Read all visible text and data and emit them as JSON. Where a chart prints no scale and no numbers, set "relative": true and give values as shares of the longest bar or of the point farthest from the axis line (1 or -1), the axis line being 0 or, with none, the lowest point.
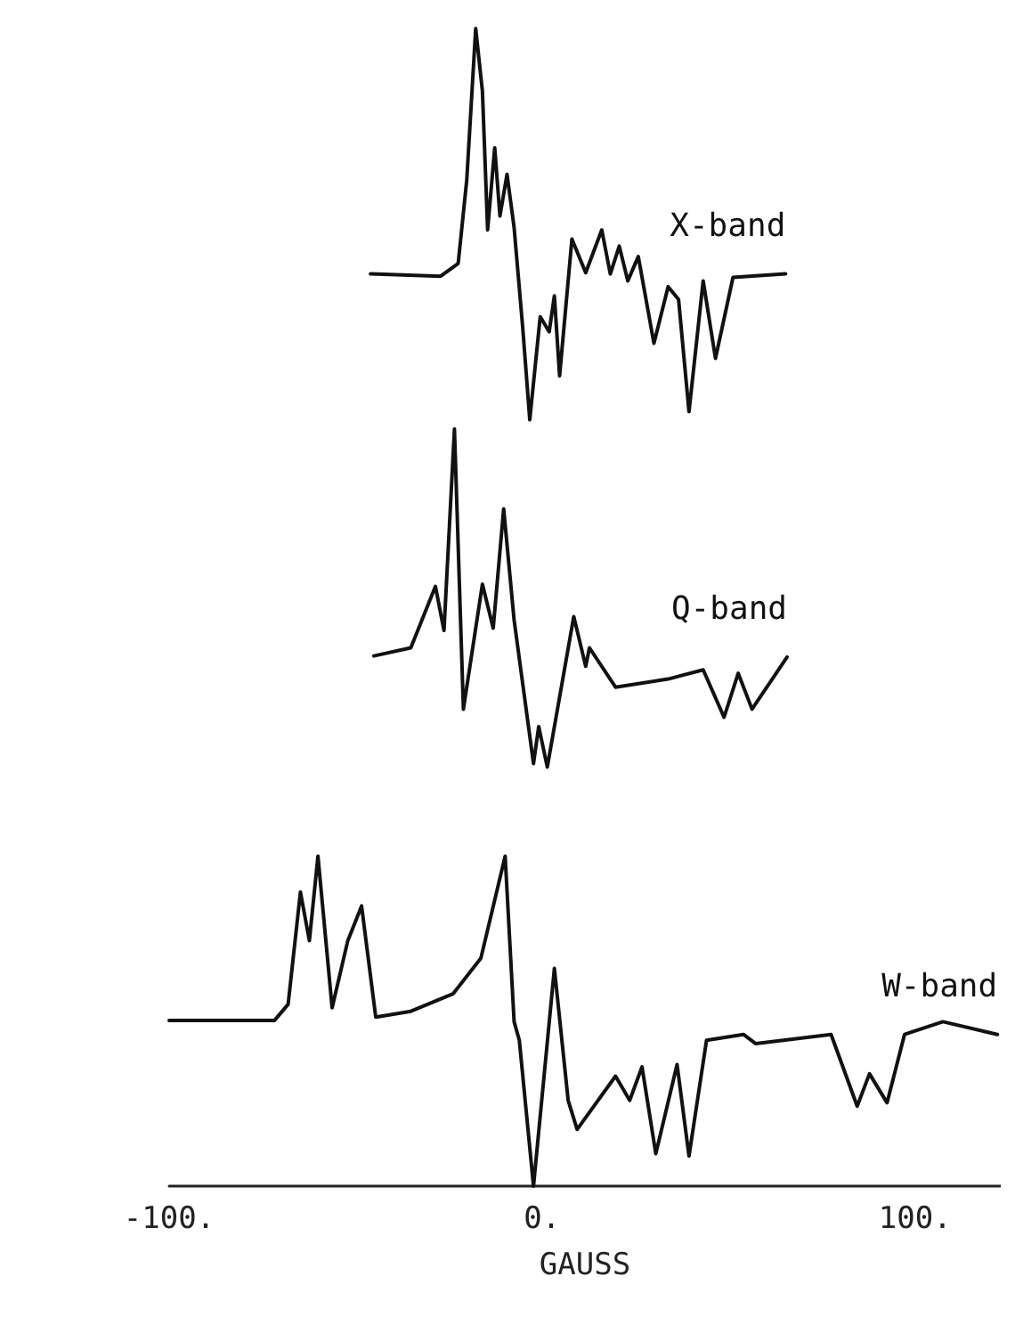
{
  "chart_data": {
    "type": "line",
    "relative": true,
    "xlabel": "GAUSS",
    "xlim": [
      -100,
      123
    ],
    "xticks": [
      {
        "value": -100,
        "label": "-100."
      },
      {
        "value": 0,
        "label": "0."
      },
      {
        "value": 100,
        "label": "100."
      }
    ],
    "tick_labels": "x",
    "grid": false,
    "legend": false,
    "marker": "none",
    "line_style": "solid",
    "series": [
      {
        "name": "X-band",
        "color": "#111111",
        "x": [
          -46.0,
          -27.2,
          -22.5,
          -20.2,
          -17.8,
          -16.0,
          -14.6,
          -12.7,
          -11.3,
          -9.4,
          -7.5,
          -5.2,
          -3.3,
          -0.5,
          1.9,
          3.3,
          4.7,
          8.0,
          11.7,
          16.0,
          18.3,
          20.7,
          23.0,
          25.8,
          30.0,
          33.8,
          36.6,
          39.4,
          43.2,
          46.5,
          51.2,
          65.3
        ],
        "values": [
          0.788,
          0.786,
          0.797,
          0.869,
          1,
          0.946,
          0.826,
          0.897,
          0.838,
          0.874,
          0.828,
          0.742,
          0.662,
          0.751,
          0.738,
          0.769,
          0.7,
          0.818,
          0.789,
          0.826,
          0.788,
          0.812,
          0.782,
          0.803,
          0.728,
          0.777,
          0.766,
          0.669,
          0.782,
          0.715,
          0.785,
          0.788
        ]
      },
      {
        "name": "Q-band",
        "color": "#111111",
        "x": [
          -45.1,
          -35.2,
          -28.6,
          -26.3,
          -23.5,
          -21.1,
          -16.0,
          -13.1,
          -10.3,
          -7.5,
          -2.3,
          -0.9,
          1.4,
          8.5,
          11.7,
          12.7,
          19.7,
          33.8,
          43.2,
          48.8,
          52.6,
          56.3,
          65.7
        ],
        "values": [
          0.458,
          0.465,
          0.518,
          0.48,
          0.654,
          0.412,
          0.52,
          0.482,
          0.585,
          0.489,
          0.365,
          0.397,
          0.362,
          0.492,
          0.449,
          0.465,
          0.431,
          0.438,
          0.446,
          0.405,
          0.443,
          0.412,
          0.457
        ]
      },
      {
        "name": "W-band",
        "color": "#111111",
        "x": [
          -100,
          -71.8,
          -68.1,
          -64.8,
          -62.4,
          -60.1,
          -56.3,
          -52.1,
          -48.4,
          -44.6,
          -35.2,
          -23.9,
          -16.4,
          -9.9,
          -7.5,
          -6.1,
          -2.3,
          3.3,
          7.0,
          9.4,
          19.7,
          23.5,
          26.8,
          30.5,
          36.2,
          39.4,
          44.1,
          54.0,
          57.3,
          77.5,
          84.5,
          87.8,
          92.5,
          97.2,
          107.5,
          122.1
        ],
        "values": [
          0.143,
          0.143,
          0.157,
          0.254,
          0.212,
          0.285,
          0.154,
          0.212,
          0.242,
          0.146,
          0.151,
          0.166,
          0.197,
          0.285,
          0.142,
          0.126,
          0,
          0.188,
          0.074,
          0.049,
          0.095,
          0.074,
          0.103,
          0.028,
          0.105,
          0.026,
          0.126,
          0.131,
          0.123,
          0.131,
          0.069,
          0.097,
          0.072,
          0.131,
          0.142,
          0.131
        ]
      }
    ]
  }
}
